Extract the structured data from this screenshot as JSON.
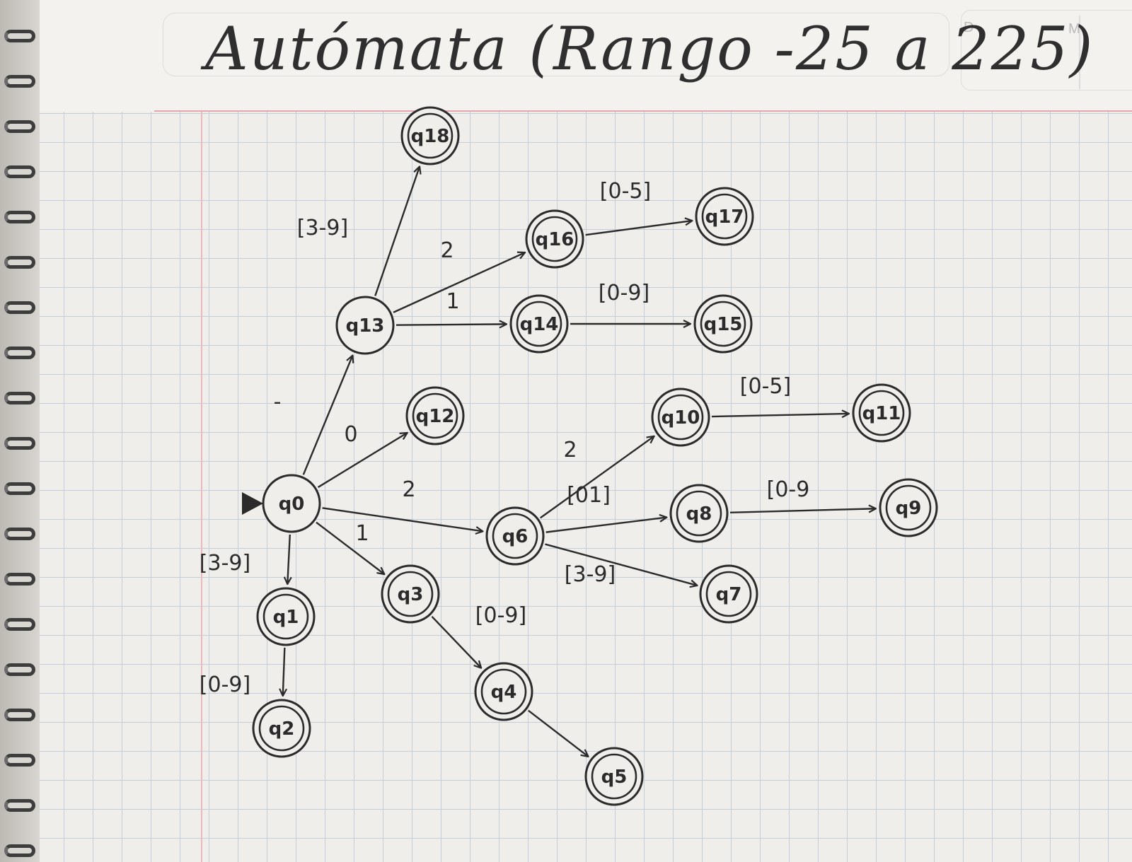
{
  "title": "Autómata (Rango -25 a 225)",
  "corner_marks": {
    "left": "D",
    "right": "M"
  },
  "colors": {
    "ink": "#2b2b2b",
    "grid": "#c5cdd8",
    "margin": "#e4a8ad",
    "paper": "#efeeeb"
  },
  "states": [
    {
      "id": "q0",
      "label": "q0",
      "accepting": false,
      "initial": true
    },
    {
      "id": "q1",
      "label": "q1",
      "accepting": true,
      "initial": false
    },
    {
      "id": "q2",
      "label": "q2",
      "accepting": true,
      "initial": false
    },
    {
      "id": "q3",
      "label": "q3",
      "accepting": true,
      "initial": false
    },
    {
      "id": "q4",
      "label": "q4",
      "accepting": true,
      "initial": false
    },
    {
      "id": "q5",
      "label": "q5",
      "accepting": true,
      "initial": false
    },
    {
      "id": "q6",
      "label": "q6",
      "accepting": true,
      "initial": false
    },
    {
      "id": "q7",
      "label": "q7",
      "accepting": true,
      "initial": false
    },
    {
      "id": "q8",
      "label": "q8",
      "accepting": true,
      "initial": false
    },
    {
      "id": "q9",
      "label": "q9",
      "accepting": true,
      "initial": false
    },
    {
      "id": "q10",
      "label": "q10",
      "accepting": true,
      "initial": false
    },
    {
      "id": "q11",
      "label": "q11",
      "accepting": true,
      "initial": false
    },
    {
      "id": "q12",
      "label": "q12",
      "accepting": true,
      "initial": false
    },
    {
      "id": "q13",
      "label": "q13",
      "accepting": false,
      "initial": false
    },
    {
      "id": "q14",
      "label": "q14",
      "accepting": true,
      "initial": false
    },
    {
      "id": "q15",
      "label": "q15",
      "accepting": true,
      "initial": false
    },
    {
      "id": "q16",
      "label": "q16",
      "accepting": true,
      "initial": false
    },
    {
      "id": "q17",
      "label": "q17",
      "accepting": true,
      "initial": false
    },
    {
      "id": "q18",
      "label": "q18",
      "accepting": true,
      "initial": false
    }
  ],
  "transitions": [
    {
      "from": "q0",
      "to": "q13",
      "label": "-"
    },
    {
      "from": "q0",
      "to": "q12",
      "label": "0"
    },
    {
      "from": "q0",
      "to": "q6",
      "label": "2"
    },
    {
      "from": "q0",
      "to": "q3",
      "label": "1"
    },
    {
      "from": "q0",
      "to": "q1",
      "label": "[3-9]"
    },
    {
      "from": "q1",
      "to": "q2",
      "label": "[0-9]"
    },
    {
      "from": "q3",
      "to": "q4",
      "label": "[0-9]"
    },
    {
      "from": "q4",
      "to": "q5",
      "label": ""
    },
    {
      "from": "q6",
      "to": "q10",
      "label": "2"
    },
    {
      "from": "q6",
      "to": "q8",
      "label": "[01]"
    },
    {
      "from": "q6",
      "to": "q7",
      "label": "[3-9]"
    },
    {
      "from": "q10",
      "to": "q11",
      "label": "[0-5]"
    },
    {
      "from": "q8",
      "to": "q9",
      "label": "[0-9"
    },
    {
      "from": "q13",
      "to": "q18",
      "label": "[3-9]"
    },
    {
      "from": "q13",
      "to": "q16",
      "label": "2"
    },
    {
      "from": "q13",
      "to": "q14",
      "label": "1"
    },
    {
      "from": "q16",
      "to": "q17",
      "label": "[0-5]"
    },
    {
      "from": "q14",
      "to": "q15",
      "label": "[0-9]"
    }
  ]
}
